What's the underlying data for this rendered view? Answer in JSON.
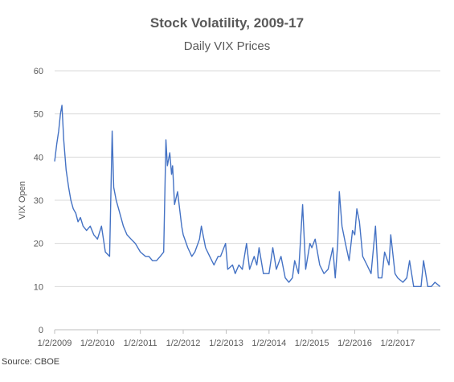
{
  "chart_data": {
    "type": "line",
    "title": "Stock Volatility,  2009-17",
    "subtitle": "Daily VIX Prices",
    "xlabel": "",
    "ylabel": "VIX Open",
    "ylim": [
      0,
      60
    ],
    "y_ticks": [
      0,
      10,
      20,
      30,
      40,
      50,
      60
    ],
    "x_tick_labels": [
      "1/2/2009",
      "1/2/2010",
      "1/2/2011",
      "1/2/2012",
      "1/2/2013",
      "1/2/2014",
      "1/2/2015",
      "1/2/2016",
      "1/2/2017"
    ],
    "x_range": [
      "2009-01-02",
      "2017-12-31"
    ],
    "grid": true,
    "line_color": "#4472C4",
    "series": [
      {
        "x": [
          "2009-01-02",
          "2009-01-20",
          "2009-02-05",
          "2009-02-20",
          "2009-03-05",
          "2009-03-20",
          "2009-04-10",
          "2009-05-01",
          "2009-05-20",
          "2009-06-10",
          "2009-07-01",
          "2009-07-20",
          "2009-08-10",
          "2009-09-01",
          "2009-10-01",
          "2009-11-01",
          "2009-12-01",
          "2010-01-02",
          "2010-02-05",
          "2010-03-10",
          "2010-04-15",
          "2010-05-07",
          "2010-05-20",
          "2010-06-10",
          "2010-07-01",
          "2010-08-10",
          "2010-09-10",
          "2010-10-15",
          "2010-11-20",
          "2011-01-02",
          "2011-02-15",
          "2011-03-16",
          "2011-04-15",
          "2011-05-20",
          "2011-06-20",
          "2011-07-20",
          "2011-08-08",
          "2011-08-20",
          "2011-09-10",
          "2011-09-25",
          "2011-10-04",
          "2011-10-20",
          "2011-11-15",
          "2011-12-20",
          "2012-01-02",
          "2012-02-10",
          "2012-03-15",
          "2012-04-10",
          "2012-05-20",
          "2012-06-05",
          "2012-07-10",
          "2012-08-15",
          "2012-09-20",
          "2012-10-25",
          "2012-11-15",
          "2012-12-28",
          "2013-01-15",
          "2013-02-25",
          "2013-03-20",
          "2013-04-20",
          "2013-05-20",
          "2013-06-24",
          "2013-07-20",
          "2013-08-28",
          "2013-09-20",
          "2013-10-09",
          "2013-11-15",
          "2013-12-20",
          "2014-01-02",
          "2014-02-03",
          "2014-03-05",
          "2014-04-14",
          "2014-05-20",
          "2014-06-20",
          "2014-07-20",
          "2014-08-08",
          "2014-09-10",
          "2014-10-15",
          "2014-11-10",
          "2014-12-16",
          "2015-01-02",
          "2015-01-30",
          "2015-03-10",
          "2015-04-15",
          "2015-05-20",
          "2015-06-29",
          "2015-07-20",
          "2015-08-10",
          "2015-08-24",
          "2015-09-15",
          "2015-10-15",
          "2015-11-15",
          "2015-12-14",
          "2016-01-02",
          "2016-01-20",
          "2016-02-11",
          "2016-03-10",
          "2016-04-15",
          "2016-05-20",
          "2016-06-27",
          "2016-07-20",
          "2016-08-20",
          "2016-09-12",
          "2016-10-20",
          "2016-11-04",
          "2016-12-10",
          "2017-01-02",
          "2017-02-15",
          "2017-03-20",
          "2017-04-13",
          "2017-05-18",
          "2017-06-20",
          "2017-07-20",
          "2017-08-10",
          "2017-09-15",
          "2017-10-15",
          "2017-11-15",
          "2017-12-29"
        ],
        "values": [
          39,
          43,
          46,
          50,
          52,
          44,
          37,
          33,
          30,
          28,
          27,
          25,
          26,
          24,
          23,
          24,
          22,
          21,
          24,
          18,
          17,
          46,
          33,
          30,
          28,
          24,
          22,
          21,
          20,
          18,
          17,
          17,
          16,
          16,
          17,
          18,
          44,
          38,
          41,
          36,
          38,
          29,
          32,
          24,
          22,
          19,
          17,
          18,
          21,
          24,
          19,
          17,
          15,
          17,
          17,
          20,
          14,
          15,
          13,
          15,
          14,
          20,
          14,
          17,
          15,
          19,
          13,
          13,
          13,
          19,
          14,
          17,
          12,
          11,
          12,
          16,
          13,
          29,
          14,
          20,
          19,
          21,
          15,
          13,
          14,
          19,
          12,
          20,
          32,
          24,
          20,
          16,
          23,
          22,
          28,
          25,
          17,
          15,
          13,
          24,
          12,
          12,
          18,
          15,
          22,
          13,
          12,
          11,
          12,
          16,
          10,
          10,
          10,
          16,
          10,
          10,
          11,
          10
        ]
      }
    ]
  },
  "footer": {
    "source": "Source: CBOE"
  }
}
